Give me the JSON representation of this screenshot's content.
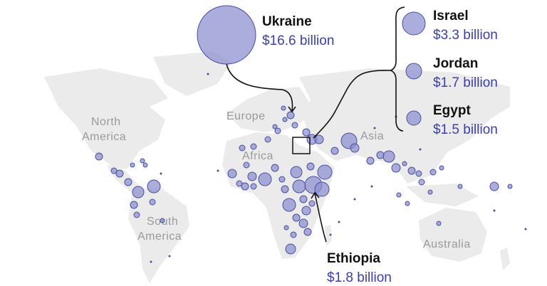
{
  "map": {
    "regions": {
      "north_america": [
        "North",
        "America"
      ],
      "south_america": [
        "South",
        "America"
      ],
      "europe": "Europe",
      "africa": "Africa",
      "asia": "Asia",
      "australia": "Australia"
    },
    "callouts": [
      {
        "country": "Ukraine",
        "value": "$16.6 billion",
        "amount_billion": 16.6
      },
      {
        "country": "Israel",
        "value": "$3.3 billion",
        "amount_billion": 3.3
      },
      {
        "country": "Jordan",
        "value": "$1.7 billion",
        "amount_billion": 1.7
      },
      {
        "country": "Egypt",
        "value": "$1.5 billion",
        "amount_billion": 1.5
      },
      {
        "country": "Ethiopia",
        "value": "$1.8 billion",
        "amount_billion": 1.8
      }
    ],
    "colors": {
      "bubble_fill": "#8a8fd0",
      "bubble_stroke": "#4a4f9e",
      "value_text": "#3c3fa8",
      "land": "#ebebeb",
      "region_text": "#9a9a9a"
    }
  }
}
